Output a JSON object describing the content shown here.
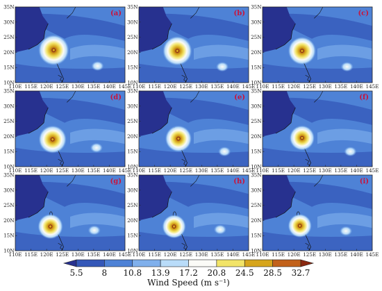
{
  "panels": [
    {
      "label": "(a)"
    },
    {
      "label": "(b)"
    },
    {
      "label": "(c)"
    },
    {
      "label": "(d)"
    },
    {
      "label": "(e)"
    },
    {
      "label": "(f)"
    },
    {
      "label": "(g)"
    },
    {
      "label": "(h)"
    },
    {
      "label": "(i)"
    }
  ],
  "axes": {
    "lat_ticks": [
      "35N",
      "30N",
      "25N",
      "20N",
      "15N",
      "10N"
    ],
    "lon_ticks": [
      "110E",
      "115E",
      "120E",
      "125E",
      "130E",
      "135E",
      "140E",
      "145E"
    ]
  },
  "colorbar": {
    "title": "Wind Speed (m s⁻¹)",
    "levels": [
      "5.5",
      "8",
      "10.8",
      "13.9",
      "17.2",
      "20.8",
      "24.5",
      "28.5",
      "32.7"
    ],
    "colors": [
      "#27318f",
      "#3457b8",
      "#4e82d6",
      "#80b0ec",
      "#b9dcf9",
      "#fbfbf7",
      "#f2e468",
      "#d6a51c",
      "#c2611a",
      "#8a2810"
    ]
  }
}
